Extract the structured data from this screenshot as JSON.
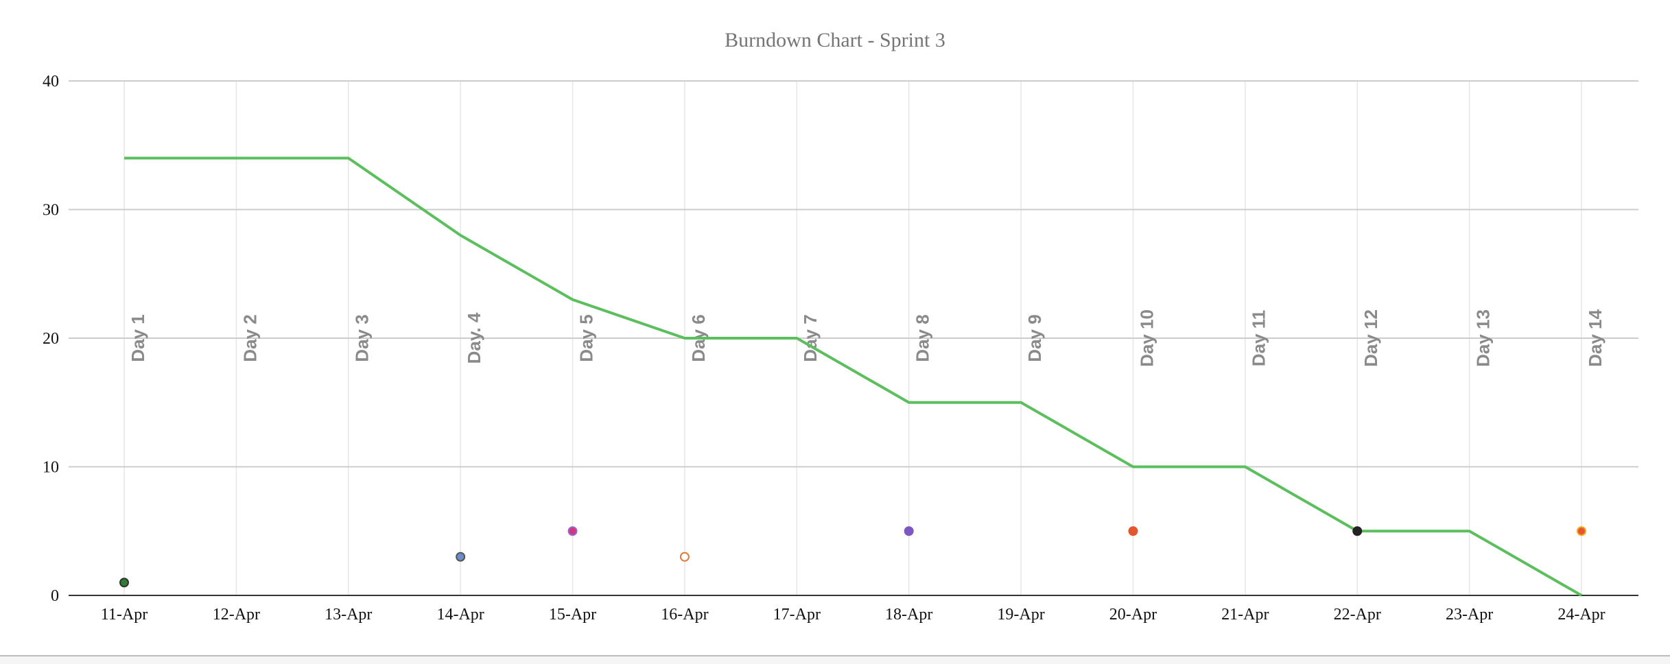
{
  "chart_data": {
    "type": "line",
    "title": "Burndown Chart - Sprint 3",
    "xlabel": "",
    "ylabel": "",
    "categories": [
      "11-Apr",
      "12-Apr",
      "13-Apr",
      "14-Apr",
      "15-Apr",
      "16-Apr",
      "17-Apr",
      "18-Apr",
      "19-Apr",
      "20-Apr",
      "21-Apr",
      "22-Apr",
      "23-Apr",
      "24-Apr"
    ],
    "day_labels": [
      "Day 1",
      "Day 2",
      "Day 3",
      "Day. 4",
      "Day 5",
      "Day 6",
      "Day 7",
      "Day 8",
      "Day 9",
      "Day 10",
      "Day 11",
      "Day 12",
      "Day 13",
      "Day 14"
    ],
    "ylim": [
      0,
      40
    ],
    "yticks": [
      0,
      10,
      20,
      30,
      40
    ],
    "grid": true,
    "series": [
      {
        "type": "line",
        "color": "#5cbf5e",
        "values": [
          34,
          34,
          34,
          28,
          23,
          20,
          20,
          15,
          15,
          10,
          10,
          5,
          5,
          0
        ]
      },
      {
        "type": "scatter",
        "points": [
          {
            "x": "11-Apr",
            "y": 1,
            "color": "#2e7d32",
            "stroke": "#333333",
            "fill": true
          },
          {
            "x": "14-Apr",
            "y": 3,
            "color": "#6a8fc8",
            "stroke": "#555555",
            "fill": true
          },
          {
            "x": "15-Apr",
            "y": 5,
            "color": "#d63384",
            "stroke": "#8e6fd0",
            "fill": true
          },
          {
            "x": "16-Apr",
            "y": 3,
            "color": "#ffffff",
            "stroke": "#e07a3a",
            "fill": false
          },
          {
            "x": "18-Apr",
            "y": 5,
            "color": "#7e57c2",
            "stroke": "#7e57c2",
            "fill": true
          },
          {
            "x": "20-Apr",
            "y": 5,
            "color": "#e4572e",
            "stroke": "#e4572e",
            "fill": true
          },
          {
            "x": "22-Apr",
            "y": 5,
            "color": "#222222",
            "stroke": "#222222",
            "fill": true
          },
          {
            "x": "24-Apr",
            "y": 5,
            "color": "#e4572e",
            "stroke": "#f5a623",
            "fill": true
          }
        ]
      }
    ]
  }
}
